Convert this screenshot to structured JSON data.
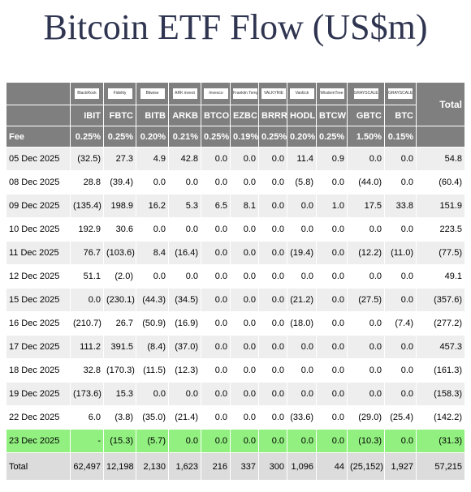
{
  "title": "Bitcoin ETF Flow (US$m)",
  "header": {
    "logos": [
      "BlackRock",
      "Fidelity",
      "Bitwise",
      "ARK invest",
      "Invesco",
      "Franklin Templeton",
      "VALKYRIE",
      "VanEck",
      "WisdomTree",
      "GRAYSCALE",
      "GRAYSCALE"
    ],
    "tickers": [
      "IBIT",
      "FBTC",
      "BITB",
      "ARKB",
      "BTCO",
      "EZBC",
      "BRRR",
      "HODL",
      "BTCW",
      "GBTC",
      "BTC"
    ],
    "total_label": "Total",
    "fee_label": "Fee",
    "fees": [
      "0.25%",
      "0.25%",
      "0.20%",
      "0.21%",
      "0.25%",
      "0.19%",
      "0.25%",
      "0.20%",
      "0.25%",
      "1.50%",
      "0.15%"
    ]
  },
  "rows": [
    {
      "date": "05 Dec 2025",
      "values": [
        "(32.5)",
        "27.3",
        "4.9",
        "42.8",
        "0.0",
        "0.0",
        "0.0",
        "11.4",
        "0.9",
        "0.0",
        "0.0"
      ],
      "total": "54.8",
      "style": "alt"
    },
    {
      "date": "08 Dec 2025",
      "values": [
        "28.8",
        "(39.4)",
        "0.0",
        "0.0",
        "0.0",
        "0.0",
        "0.0",
        "(5.8)",
        "0.0",
        "(44.0)",
        "0.0"
      ],
      "total": "(60.4)",
      "style": "plain"
    },
    {
      "date": "09 Dec 2025",
      "values": [
        "(135.4)",
        "198.9",
        "16.2",
        "5.3",
        "6.5",
        "8.1",
        "0.0",
        "0.0",
        "1.0",
        "17.5",
        "33.8"
      ],
      "total": "151.9",
      "style": "alt"
    },
    {
      "date": "10 Dec 2025",
      "values": [
        "192.9",
        "30.6",
        "0.0",
        "0.0",
        "0.0",
        "0.0",
        "0.0",
        "0.0",
        "0.0",
        "0.0",
        "0.0"
      ],
      "total": "223.5",
      "style": "plain"
    },
    {
      "date": "11 Dec 2025",
      "values": [
        "76.7",
        "(103.6)",
        "8.4",
        "(16.4)",
        "0.0",
        "0.0",
        "0.0",
        "(19.4)",
        "0.0",
        "(12.2)",
        "(11.0)"
      ],
      "total": "(77.5)",
      "style": "alt"
    },
    {
      "date": "12 Dec 2025",
      "values": [
        "51.1",
        "(2.0)",
        "0.0",
        "0.0",
        "0.0",
        "0.0",
        "0.0",
        "0.0",
        "0.0",
        "0.0",
        "0.0"
      ],
      "total": "49.1",
      "style": "plain"
    },
    {
      "date": "15 Dec 2025",
      "values": [
        "0.0",
        "(230.1)",
        "(44.3)",
        "(34.5)",
        "0.0",
        "0.0",
        "0.0",
        "(21.2)",
        "0.0",
        "(27.5)",
        "0.0"
      ],
      "total": "(357.6)",
      "style": "alt"
    },
    {
      "date": "16 Dec 2025",
      "values": [
        "(210.7)",
        "26.7",
        "(50.9)",
        "(16.9)",
        "0.0",
        "0.0",
        "0.0",
        "(18.0)",
        "0.0",
        "0.0",
        "(7.4)"
      ],
      "total": "(277.2)",
      "style": "plain"
    },
    {
      "date": "17 Dec 2025",
      "values": [
        "111.2",
        "391.5",
        "(8.4)",
        "(37.0)",
        "0.0",
        "0.0",
        "0.0",
        "0.0",
        "0.0",
        "0.0",
        "0.0"
      ],
      "total": "457.3",
      "style": "alt"
    },
    {
      "date": "18 Dec 2025",
      "values": [
        "32.8",
        "(170.3)",
        "(11.5)",
        "(12.3)",
        "0.0",
        "0.0",
        "0.0",
        "0.0",
        "0.0",
        "0.0",
        "0.0"
      ],
      "total": "(161.3)",
      "style": "plain"
    },
    {
      "date": "19 Dec 2025",
      "values": [
        "(173.6)",
        "15.3",
        "0.0",
        "0.0",
        "0.0",
        "0.0",
        "0.0",
        "0.0",
        "0.0",
        "0.0",
        "0.0"
      ],
      "total": "(158.3)",
      "style": "alt"
    },
    {
      "date": "22 Dec 2025",
      "values": [
        "6.0",
        "(3.8)",
        "(35.0)",
        "(21.4)",
        "0.0",
        "0.0",
        "0.0",
        "(33.6)",
        "0.0",
        "(29.0)",
        "(25.4)"
      ],
      "total": "(142.2)",
      "style": "plain"
    },
    {
      "date": "23 Dec 2025",
      "values": [
        "-",
        "(15.3)",
        "(5.7)",
        "0.0",
        "0.0",
        "0.0",
        "0.0",
        "0.0",
        "0.0",
        "(10.3)",
        "0.0"
      ],
      "total": "(31.3)",
      "style": "green"
    }
  ],
  "totals": {
    "label": "Total",
    "values": [
      "62,497",
      "12,198",
      "2,130",
      "1,623",
      "216",
      "337",
      "300",
      "1,096",
      "44",
      "(25,152)",
      "1,927"
    ],
    "total": "57,215"
  },
  "colors": {
    "title": "#2f3550",
    "header_bg": "#7f7f7f",
    "alt_row_bg": "#eeeeee",
    "highlight_row_bg": "#92f080",
    "totals_row_bg": "#dcdcdc",
    "negative_text": "#e00000"
  }
}
